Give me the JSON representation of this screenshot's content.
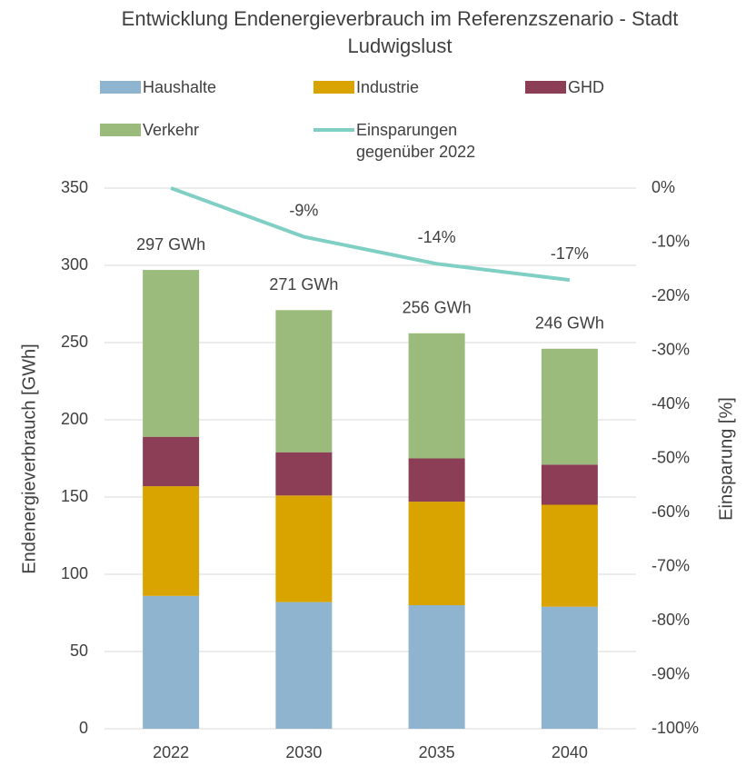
{
  "chart_data": {
    "type": "bar",
    "stacked": true,
    "title": "Entwicklung Endenergieverbrauch im Referenzszenario - Stadt Ludwigslust",
    "ylabel": "Endenergieverbrauch [GWh]",
    "y2label": "Einsparung [%]",
    "categories": [
      "2022",
      "2030",
      "2035",
      "2040"
    ],
    "series": [
      {
        "name": "Haushalte",
        "color": "#8eb4cf",
        "values": [
          86,
          82,
          80,
          79
        ]
      },
      {
        "name": "Industrie",
        "color": "#d9a300",
        "values": [
          71,
          69,
          67,
          66
        ]
      },
      {
        "name": "GHD",
        "color": "#8b3e55",
        "values": [
          32,
          28,
          28,
          26
        ]
      },
      {
        "name": "Verkehr",
        "color": "#9bbb7c",
        "values": [
          108,
          92,
          81,
          75
        ]
      },
      {
        "name": "Einsparungen gegenüber 2022",
        "type": "line",
        "axis": "y2",
        "color": "#80cfc5",
        "values": [
          0,
          -9,
          -14,
          -17
        ],
        "value_labels": [
          null,
          "-9%",
          "-14%",
          "-17%"
        ]
      }
    ],
    "total_labels": [
      "297 GWh",
      "271 GWh",
      "256 GWh",
      "246 GWh"
    ],
    "ylim": [
      0,
      350
    ],
    "yticks": [
      0,
      50,
      100,
      150,
      200,
      250,
      300,
      350
    ],
    "y2lim": [
      -100,
      0
    ],
    "y2ticks": [
      {
        "value": 0,
        "label": "0%"
      },
      {
        "value": -10,
        "label": "-10%"
      },
      {
        "value": -20,
        "label": "-20%"
      },
      {
        "value": -30,
        "label": "-30%"
      },
      {
        "value": -40,
        "label": "-40%"
      },
      {
        "value": -50,
        "label": "-50%"
      },
      {
        "value": -60,
        "label": "-60%"
      },
      {
        "value": -70,
        "label": "-70%"
      },
      {
        "value": -80,
        "label": "-80%"
      },
      {
        "value": -90,
        "label": "-90%"
      },
      {
        "value": -100,
        "label": "-100%"
      }
    ],
    "grid": true,
    "legend": "top"
  }
}
